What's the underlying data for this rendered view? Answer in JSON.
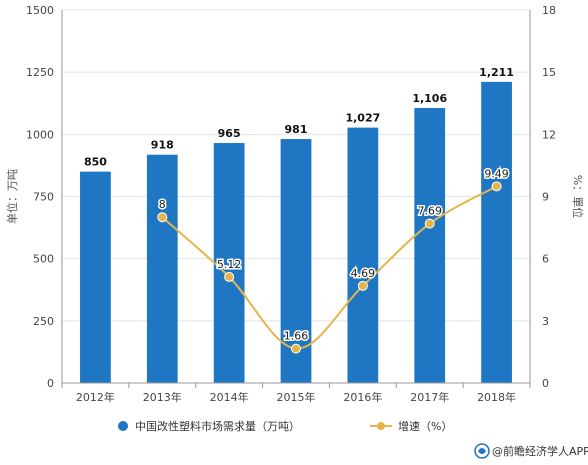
{
  "chart_data": {
    "type": "bar",
    "categories": [
      "2012年",
      "2013年",
      "2014年",
      "2015年",
      "2016年",
      "2017年",
      "2018年"
    ],
    "series": [
      {
        "name": "中国改性塑料市场需求量（万吨）",
        "type": "bar",
        "axis": "left",
        "values": [
          850,
          918,
          965,
          981,
          1027,
          1106,
          1211
        ],
        "labels": [
          "850",
          "918",
          "965",
          "981",
          "1,027",
          "1,106",
          "1,211"
        ]
      },
      {
        "name": "增速（%）",
        "type": "line",
        "axis": "right",
        "values": [
          null,
          8,
          5.12,
          1.66,
          4.69,
          7.69,
          9.49
        ],
        "labels": [
          "",
          "8",
          "5.12",
          "1.66",
          "4.69",
          "7.69",
          "9.49"
        ]
      }
    ],
    "ylabel": "单位：万吨",
    "y2label": "%：單位",
    "ylim": [
      0,
      1500
    ],
    "y2lim": [
      0,
      18
    ],
    "yticks": [
      "0",
      "250",
      "500",
      "750",
      "1000",
      "1250",
      "1500"
    ],
    "y2ticks": [
      "0",
      "3",
      "6",
      "9",
      "12",
      "15",
      "18"
    ],
    "grid": true,
    "legend_position": "bottom",
    "colors": {
      "bar": "#1f77c4",
      "line": "#e4b54b",
      "grid": "#e3e3e3",
      "axis": "#999999"
    }
  },
  "source": {
    "label": "@前瞻经济学人APP",
    "icon": "app-logo"
  }
}
